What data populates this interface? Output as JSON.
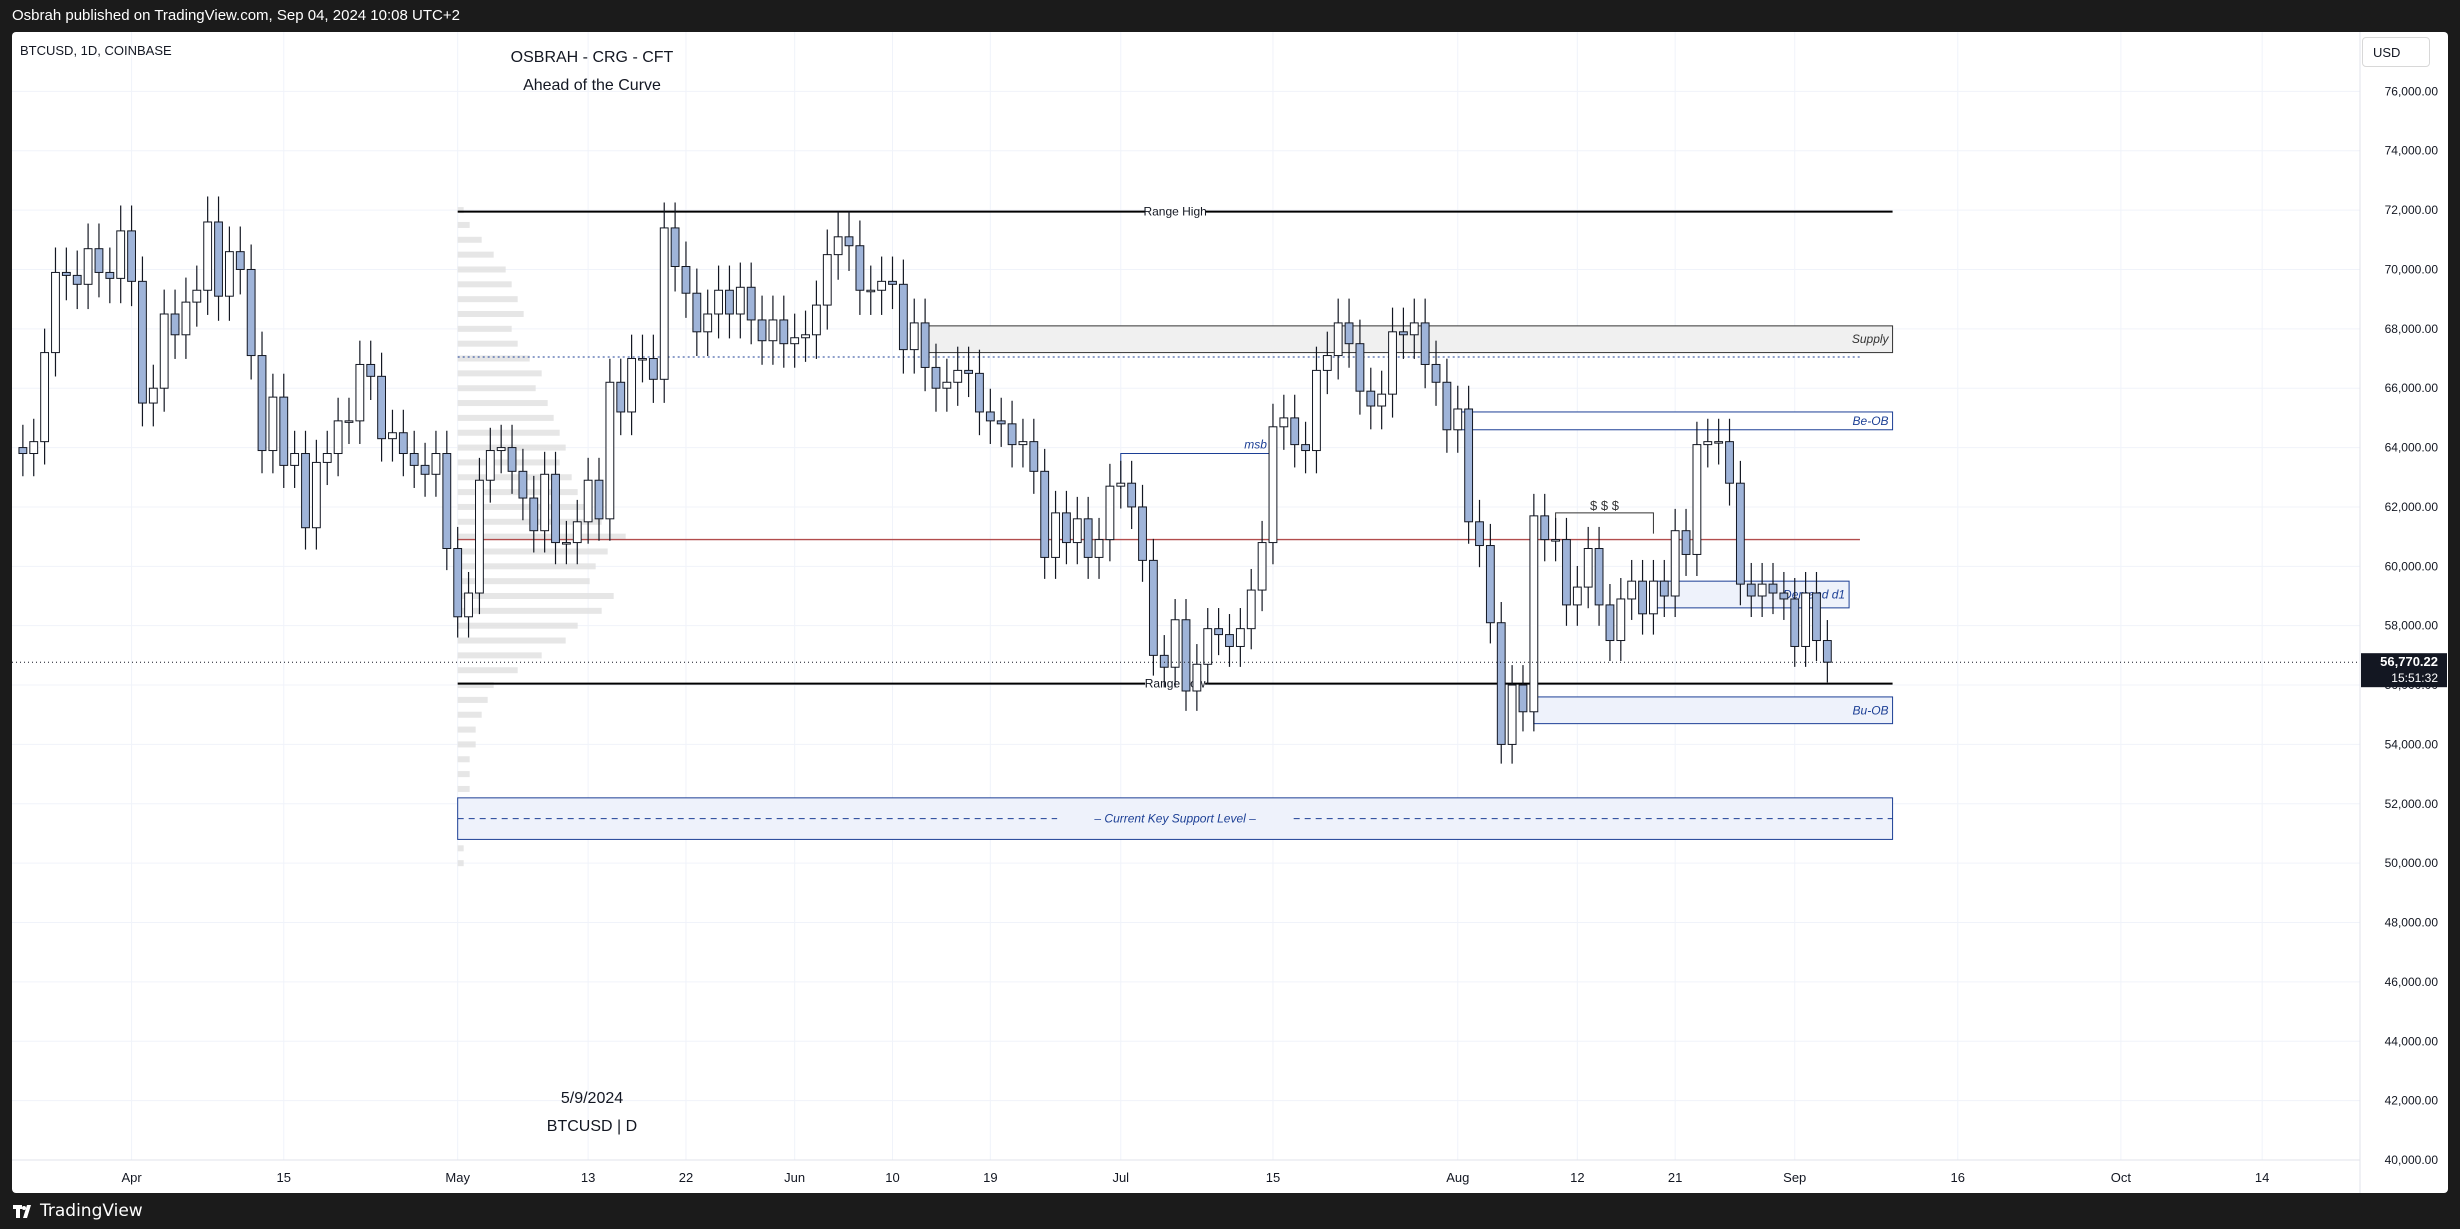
{
  "header": {
    "publish_line": "Osbrah published on TradingView.com, Sep 04, 2024 10:08 UTC+2"
  },
  "footer": {
    "logo_text": "TradingView"
  },
  "toolbar": {
    "currency": "USD"
  },
  "colors": {
    "candle_up": "#ffffff",
    "candle_down": "#9fb4d9",
    "wick": "#131722",
    "grid": "#f0f3fa",
    "drawing_blue": "#1c3f95",
    "level_red": "#b24d4d",
    "profile": "#e0e0e0"
  },
  "chart_data": {
    "type": "candlestick",
    "symbol_line": "BTCUSD, 1D, COINBASE",
    "watermark": {
      "line1": "OSBRAH - CRG - CFT",
      "line2": "Ahead of the Curve",
      "date": "5/9/2024",
      "symbol": "BTCUSD | D"
    },
    "ylim": [
      40000,
      78000
    ],
    "x_range": [
      "2024-03-21",
      "2024-10-23"
    ],
    "y_ticks": [
      "76,000.00",
      "74,000.00",
      "72,000.00",
      "70,000.00",
      "68,000.00",
      "66,000.00",
      "64,000.00",
      "62,000.00",
      "60,000.00",
      "58,000.00",
      "56,000.00",
      "54,000.00",
      "52,000.00",
      "50,000.00",
      "48,000.00",
      "46,000.00",
      "44,000.00",
      "42,000.00",
      "40,000.00"
    ],
    "x_ticks": [
      {
        "label": "Apr",
        "date": "2024-04-01"
      },
      {
        "label": "15",
        "date": "2024-04-15"
      },
      {
        "label": "May",
        "date": "2024-05-01"
      },
      {
        "label": "13",
        "date": "2024-05-13"
      },
      {
        "label": "22",
        "date": "2024-05-22"
      },
      {
        "label": "Jun",
        "date": "2024-06-01"
      },
      {
        "label": "10",
        "date": "2024-06-10"
      },
      {
        "label": "19",
        "date": "2024-06-19"
      },
      {
        "label": "Jul",
        "date": "2024-07-01"
      },
      {
        "label": "15",
        "date": "2024-07-15"
      },
      {
        "label": "Aug",
        "date": "2024-08-01"
      },
      {
        "label": "12",
        "date": "2024-08-12"
      },
      {
        "label": "21",
        "date": "2024-08-21"
      },
      {
        "label": "Sep",
        "date": "2024-09-01"
      },
      {
        "label": "16",
        "date": "2024-09-16"
      },
      {
        "label": "Oct",
        "date": "2024-10-01"
      },
      {
        "label": "14",
        "date": "2024-10-14"
      }
    ],
    "last_price": {
      "value": 56770.22,
      "label": "56,770.22",
      "countdown": "15:51:32"
    },
    "closes": [
      [
        "2024-03-21",
        64000
      ],
      [
        "2024-03-22",
        63800
      ],
      [
        "2024-03-23",
        64200
      ],
      [
        "2024-03-24",
        67200
      ],
      [
        "2024-03-25",
        69900
      ],
      [
        "2024-03-26",
        69800
      ],
      [
        "2024-03-27",
        69500
      ],
      [
        "2024-03-28",
        70700
      ],
      [
        "2024-03-29",
        69900
      ],
      [
        "2024-03-30",
        69700
      ],
      [
        "2024-03-31",
        71300
      ],
      [
        "2024-04-01",
        69600
      ],
      [
        "2024-04-02",
        65500
      ],
      [
        "2024-04-03",
        66000
      ],
      [
        "2024-04-04",
        68500
      ],
      [
        "2024-04-05",
        67800
      ],
      [
        "2024-04-06",
        68900
      ],
      [
        "2024-04-07",
        69300
      ],
      [
        "2024-04-08",
        71600
      ],
      [
        "2024-04-09",
        69100
      ],
      [
        "2024-04-10",
        70600
      ],
      [
        "2024-04-11",
        70000
      ],
      [
        "2024-04-12",
        67100
      ],
      [
        "2024-04-13",
        63900
      ],
      [
        "2024-04-14",
        65700
      ],
      [
        "2024-04-15",
        63400
      ],
      [
        "2024-04-16",
        63800
      ],
      [
        "2024-04-17",
        61300
      ],
      [
        "2024-04-18",
        63500
      ],
      [
        "2024-04-19",
        63800
      ],
      [
        "2024-04-20",
        64900
      ],
      [
        "2024-04-21",
        64900
      ],
      [
        "2024-04-22",
        66800
      ],
      [
        "2024-04-23",
        66400
      ],
      [
        "2024-04-24",
        64300
      ],
      [
        "2024-04-25",
        64500
      ],
      [
        "2024-04-26",
        63800
      ],
      [
        "2024-04-27",
        63400
      ],
      [
        "2024-04-28",
        63100
      ],
      [
        "2024-04-29",
        63800
      ],
      [
        "2024-04-30",
        60600
      ],
      [
        "2024-05-01",
        58300
      ],
      [
        "2024-05-02",
        59100
      ],
      [
        "2024-05-03",
        62900
      ],
      [
        "2024-05-04",
        63900
      ],
      [
        "2024-05-05",
        64000
      ],
      [
        "2024-05-06",
        63200
      ],
      [
        "2024-05-07",
        62300
      ],
      [
        "2024-05-08",
        61200
      ],
      [
        "2024-05-09",
        63100
      ],
      [
        "2024-05-10",
        60800
      ],
      [
        "2024-05-11",
        60800
      ],
      [
        "2024-05-12",
        61500
      ],
      [
        "2024-05-13",
        62900
      ],
      [
        "2024-05-14",
        61600
      ],
      [
        "2024-05-15",
        66200
      ],
      [
        "2024-05-16",
        65200
      ],
      [
        "2024-05-17",
        67000
      ],
      [
        "2024-05-18",
        67000
      ],
      [
        "2024-05-19",
        66300
      ],
      [
        "2024-05-20",
        71400
      ],
      [
        "2024-05-21",
        70100
      ],
      [
        "2024-05-22",
        69200
      ],
      [
        "2024-05-23",
        67900
      ],
      [
        "2024-05-24",
        68500
      ],
      [
        "2024-05-25",
        69300
      ],
      [
        "2024-05-26",
        68500
      ],
      [
        "2024-05-27",
        69400
      ],
      [
        "2024-05-28",
        68300
      ],
      [
        "2024-05-29",
        67600
      ],
      [
        "2024-05-30",
        68300
      ],
      [
        "2024-05-31",
        67500
      ],
      [
        "2024-06-01",
        67700
      ],
      [
        "2024-06-02",
        67800
      ],
      [
        "2024-06-03",
        68800
      ],
      [
        "2024-06-04",
        70500
      ],
      [
        "2024-06-05",
        71100
      ],
      [
        "2024-06-06",
        70800
      ],
      [
        "2024-06-07",
        69300
      ],
      [
        "2024-06-08",
        69300
      ],
      [
        "2024-06-09",
        69600
      ],
      [
        "2024-06-10",
        69500
      ],
      [
        "2024-06-11",
        67300
      ],
      [
        "2024-06-12",
        68200
      ],
      [
        "2024-06-13",
        66700
      ],
      [
        "2024-06-14",
        66000
      ],
      [
        "2024-06-15",
        66200
      ],
      [
        "2024-06-16",
        66600
      ],
      [
        "2024-06-17",
        66500
      ],
      [
        "2024-06-18",
        65200
      ],
      [
        "2024-06-19",
        64900
      ],
      [
        "2024-06-20",
        64800
      ],
      [
        "2024-06-21",
        64100
      ],
      [
        "2024-06-22",
        64200
      ],
      [
        "2024-06-23",
        63200
      ],
      [
        "2024-06-24",
        60300
      ],
      [
        "2024-06-25",
        61800
      ],
      [
        "2024-06-26",
        60800
      ],
      [
        "2024-06-27",
        61600
      ],
      [
        "2024-06-28",
        60300
      ],
      [
        "2024-06-29",
        60900
      ],
      [
        "2024-06-30",
        62700
      ],
      [
        "2024-07-01",
        62800
      ],
      [
        "2024-07-02",
        62000
      ],
      [
        "2024-07-03",
        60200
      ],
      [
        "2024-07-04",
        57000
      ],
      [
        "2024-07-05",
        56600
      ],
      [
        "2024-07-06",
        58200
      ],
      [
        "2024-07-07",
        55800
      ],
      [
        "2024-07-08",
        56700
      ],
      [
        "2024-07-09",
        57900
      ],
      [
        "2024-07-10",
        57700
      ],
      [
        "2024-07-11",
        57300
      ],
      [
        "2024-07-12",
        57900
      ],
      [
        "2024-07-13",
        59200
      ],
      [
        "2024-07-14",
        60800
      ],
      [
        "2024-07-15",
        64700
      ],
      [
        "2024-07-16",
        65000
      ],
      [
        "2024-07-17",
        64100
      ],
      [
        "2024-07-18",
        63900
      ],
      [
        "2024-07-19",
        66600
      ],
      [
        "2024-07-20",
        67100
      ],
      [
        "2024-07-21",
        68200
      ],
      [
        "2024-07-22",
        67500
      ],
      [
        "2024-07-23",
        65900
      ],
      [
        "2024-07-24",
        65400
      ],
      [
        "2024-07-25",
        65800
      ],
      [
        "2024-07-26",
        67900
      ],
      [
        "2024-07-27",
        67800
      ],
      [
        "2024-07-28",
        68200
      ],
      [
        "2024-07-29",
        66800
      ],
      [
        "2024-07-30",
        66200
      ],
      [
        "2024-07-31",
        64600
      ],
      [
        "2024-08-01",
        65300
      ],
      [
        "2024-08-02",
        61500
      ],
      [
        "2024-08-03",
        60700
      ],
      [
        "2024-08-04",
        58100
      ],
      [
        "2024-08-05",
        54000
      ],
      [
        "2024-08-06",
        56000
      ],
      [
        "2024-08-07",
        55100
      ],
      [
        "2024-08-08",
        61700
      ],
      [
        "2024-08-09",
        60900
      ],
      [
        "2024-08-10",
        60900
      ],
      [
        "2024-08-11",
        58700
      ],
      [
        "2024-08-12",
        59300
      ],
      [
        "2024-08-13",
        60600
      ],
      [
        "2024-08-14",
        58700
      ],
      [
        "2024-08-15",
        57500
      ],
      [
        "2024-08-16",
        58900
      ],
      [
        "2024-08-17",
        59500
      ],
      [
        "2024-08-18",
        58400
      ],
      [
        "2024-08-19",
        59500
      ],
      [
        "2024-08-20",
        59000
      ],
      [
        "2024-08-21",
        61200
      ],
      [
        "2024-08-22",
        60400
      ],
      [
        "2024-08-23",
        64100
      ],
      [
        "2024-08-24",
        64200
      ],
      [
        "2024-08-25",
        64200
      ],
      [
        "2024-08-26",
        62800
      ],
      [
        "2024-08-27",
        59400
      ],
      [
        "2024-08-28",
        59000
      ],
      [
        "2024-08-29",
        59400
      ],
      [
        "2024-08-30",
        59100
      ],
      [
        "2024-08-31",
        58900
      ],
      [
        "2024-09-01",
        57300
      ],
      [
        "2024-09-02",
        59100
      ],
      [
        "2024-09-03",
        57500
      ],
      [
        "2024-09-04",
        56770
      ]
    ],
    "profile": [
      [
        72000,
        1
      ],
      [
        71500,
        2
      ],
      [
        71000,
        4
      ],
      [
        70500,
        6
      ],
      [
        70000,
        8
      ],
      [
        69500,
        9
      ],
      [
        69000,
        10
      ],
      [
        68500,
        11
      ],
      [
        68000,
        9
      ],
      [
        67500,
        10
      ],
      [
        67000,
        12
      ],
      [
        66500,
        14
      ],
      [
        66000,
        13
      ],
      [
        65500,
        15
      ],
      [
        65000,
        16
      ],
      [
        64500,
        17
      ],
      [
        64000,
        18
      ],
      [
        63500,
        17
      ],
      [
        63000,
        19
      ],
      [
        62500,
        20
      ],
      [
        62000,
        22
      ],
      [
        61500,
        24
      ],
      [
        61000,
        28
      ],
      [
        60500,
        25
      ],
      [
        60000,
        23
      ],
      [
        59500,
        22
      ],
      [
        59000,
        26
      ],
      [
        58500,
        24
      ],
      [
        58000,
        20
      ],
      [
        57500,
        18
      ],
      [
        57000,
        14
      ],
      [
        56500,
        10
      ],
      [
        56000,
        6
      ],
      [
        55500,
        5
      ],
      [
        55000,
        4
      ],
      [
        54500,
        3
      ],
      [
        54000,
        3
      ],
      [
        53500,
        2
      ],
      [
        53000,
        2
      ],
      [
        52500,
        2
      ],
      [
        52000,
        2
      ],
      [
        51500,
        1
      ],
      [
        51000,
        1
      ],
      [
        50500,
        1
      ],
      [
        50000,
        1
      ]
    ],
    "annotations": [
      {
        "kind": "hline",
        "text": "Range High",
        "y": 71950,
        "x0": "2024-05-01",
        "x1": "2024-09-10",
        "color": "#000000"
      },
      {
        "kind": "hline",
        "text": "Range Low",
        "y": 56050,
        "x0": "2024-05-01",
        "x1": "2024-09-10",
        "color": "#000000"
      },
      {
        "kind": "hline",
        "text": "",
        "y": 60900,
        "x0": "2024-05-01",
        "x1": "2024-09-07",
        "color": "#b24d4d"
      },
      {
        "kind": "dotted",
        "text": "",
        "y": 67050,
        "x0": "2024-05-01",
        "x1": "2024-09-07",
        "color": "#1c3f95"
      },
      {
        "kind": "box",
        "text": "Supply",
        "y0": 67200,
        "y1": 68100,
        "x0": "2024-06-13",
        "x1": "2024-09-10",
        "fill": "#f0f0f0",
        "stroke": "#333333",
        "textcolor": "#333333"
      },
      {
        "kind": "box",
        "text": "Be-OB",
        "y0": 64600,
        "y1": 65200,
        "x0": "2024-08-01",
        "x1": "2024-09-10",
        "fill": "#ffffff",
        "stroke": "#1c3f95",
        "textcolor": "#1c3f95"
      },
      {
        "kind": "box",
        "text": "Bu-OB",
        "y0": 54700,
        "y1": 55600,
        "x0": "2024-08-08",
        "x1": "2024-09-10",
        "fill": "#eef2fb",
        "stroke": "#1c3f95",
        "textcolor": "#1c3f95"
      },
      {
        "kind": "box",
        "text": "Current Key Support Level",
        "y0": 50800,
        "y1": 52200,
        "x0": "2024-05-01",
        "x1": "2024-09-10",
        "fill": "#eef2fb",
        "stroke": "#1c3f95",
        "textcolor": "#1c3f95",
        "dashed_mid": true
      },
      {
        "kind": "box",
        "text": "Demand d1",
        "y0": 58600,
        "y1": 59500,
        "x0": "2024-08-19",
        "x1": "2024-09-06",
        "fill": "#eef2fb",
        "stroke": "#1c3f95",
        "textcolor": "#1c3f95"
      },
      {
        "kind": "msb",
        "text": "msb",
        "y": 63800,
        "x0": "2024-07-01",
        "x1": "2024-07-15",
        "color": "#1c3f95"
      },
      {
        "kind": "liquidity",
        "text": "$ $ $",
        "y": 61800,
        "x0": "2024-08-10",
        "x1": "2024-08-19",
        "color": "#333333"
      }
    ]
  }
}
